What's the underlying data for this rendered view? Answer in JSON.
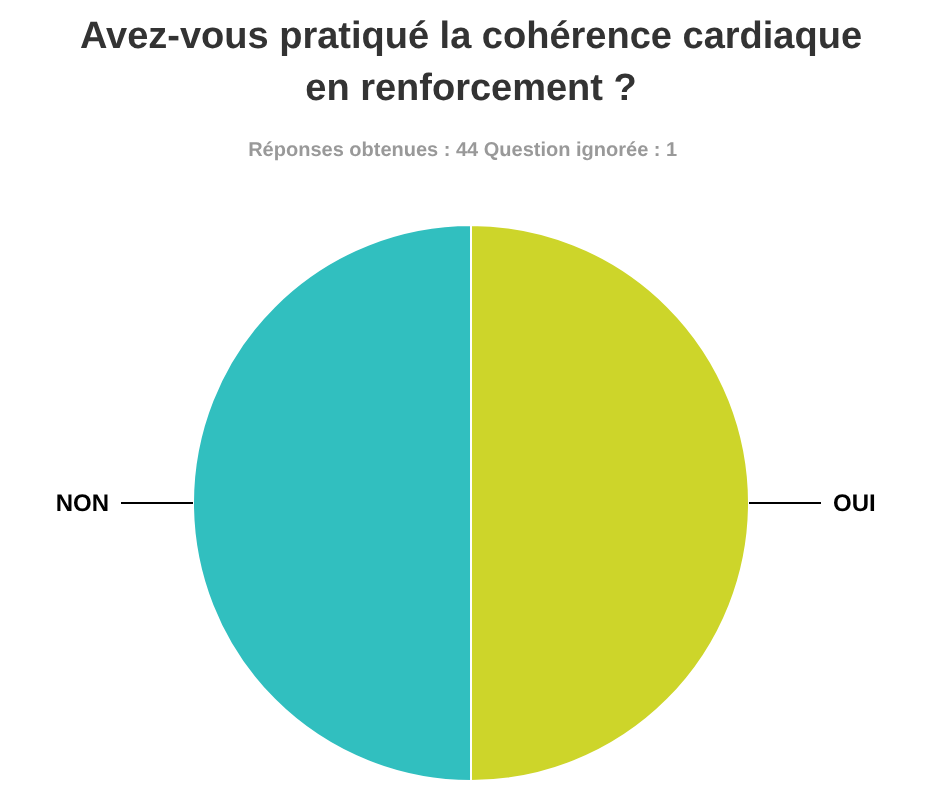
{
  "chart_data": {
    "type": "pie",
    "title": "Avez-vous pratiqué la cohérence cardiaque en renforcement ?",
    "subtitle": "Réponses obtenues : 44    Question ignorée : 1",
    "categories": [
      "OUI",
      "NON"
    ],
    "values": [
      50,
      50
    ],
    "colors": [
      "#cdd52a",
      "#31bfbf"
    ]
  }
}
